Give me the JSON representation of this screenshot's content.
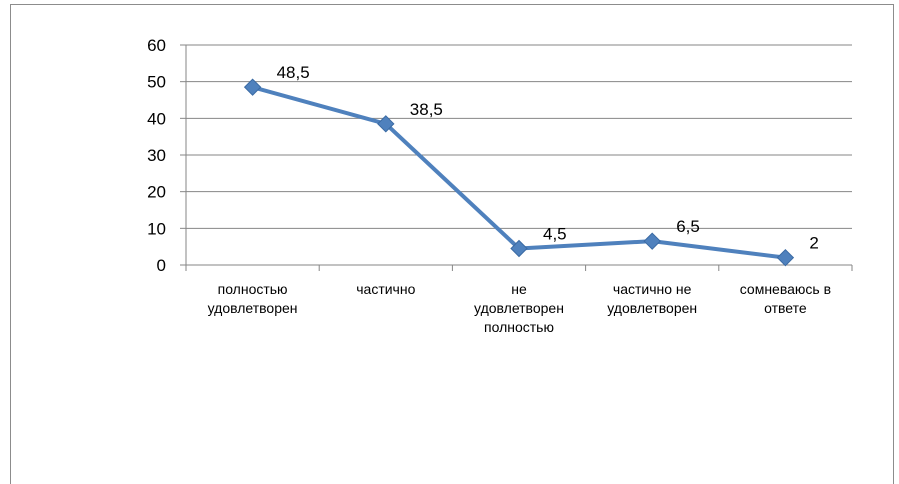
{
  "chart_data": {
    "type": "line",
    "categories": [
      [
        "полностью",
        "удовлетворен"
      ],
      [
        "частично"
      ],
      [
        "не",
        "удовлетворен",
        "полностью"
      ],
      [
        "частично не",
        "удовлетворен"
      ],
      [
        "сомневаюсь в",
        "ответе"
      ]
    ],
    "values": [
      48.5,
      38.5,
      4.5,
      6.5,
      2
    ],
    "data_labels": [
      "48,5",
      "38,5",
      "4,5",
      "6,5",
      "2"
    ],
    "y_ticks": [
      "0",
      "10",
      "20",
      "30",
      "40",
      "50",
      "60"
    ],
    "ylim": [
      0,
      60
    ],
    "grid": true,
    "legend": "none",
    "series_color": "#4f81bd",
    "grid_color": "#868686"
  }
}
